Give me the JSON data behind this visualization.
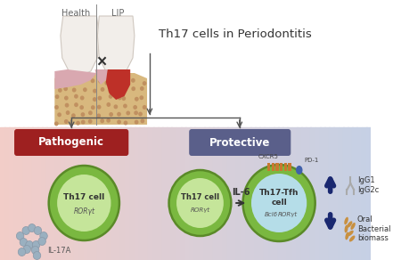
{
  "title": "Th17 cells in Periodontitis",
  "health_label": "Health",
  "lip_label": "LIP",
  "pathogenic_label": "Pathogenic",
  "protective_label": "Protective",
  "th17_cell_label": "Th17 cell",
  "rorgamma_label": "RORγt",
  "il17a_label": "IL-17A",
  "il6_label": "IL-6",
  "th17_tfh_label": "Th17-Tfh\ncell",
  "cxcr5_label": "CXCR5",
  "pd1_label": "PD-1",
  "bcl6_label": "Bcl6",
  "igg1_label": "IgG1\nIgG2c",
  "oral_label": "Oral\nBacterial\nbiomass",
  "bg_left_color": "#f2cdc8",
  "bg_right_color": "#c5d0e5",
  "pathogenic_box_color": "#9e2020",
  "protective_box_color": "#5a5f8a",
  "cell_outer_color": "#7ab840",
  "cell_inner_color_green": "#c5e59a",
  "cell_inner_color_blue": "#b5dde8",
  "arrow_color_dark": "#1a2870",
  "text_dark": "#333333",
  "text_gray": "#666666",
  "tooth_white": "#f2eeea",
  "tooth_edge": "#d0c8c0",
  "gum_pink": "#d9a8b0",
  "gum_inflamed": "#be3028",
  "bone_tan": "#d8b87e",
  "bone_dot": "#c09060",
  "separator_color": "#888888",
  "background_top": "#ffffff",
  "receptor_color": "#c87830",
  "pd1_color": "#4060aa",
  "il17a_dot_color": "#9ab0c0",
  "bacteria_color": "#c89040"
}
